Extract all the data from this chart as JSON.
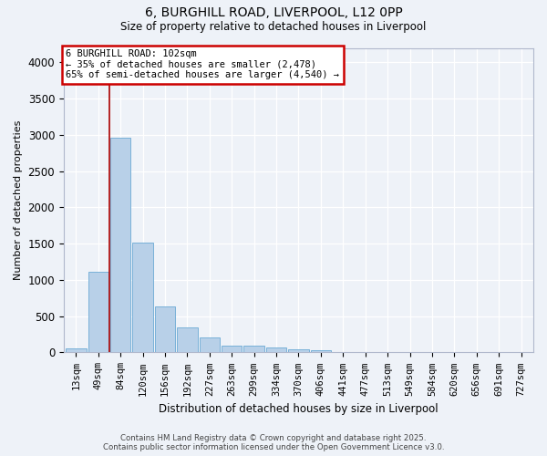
{
  "title_line1": "6, BURGHILL ROAD, LIVERPOOL, L12 0PP",
  "title_line2": "Size of property relative to detached houses in Liverpool",
  "xlabel": "Distribution of detached houses by size in Liverpool",
  "ylabel": "Number of detached properties",
  "bar_color": "#b8d0e8",
  "bar_edge_color": "#6aaad4",
  "background_color": "#eef2f8",
  "grid_color": "#ffffff",
  "categories": [
    "13sqm",
    "49sqm",
    "84sqm",
    "120sqm",
    "156sqm",
    "192sqm",
    "227sqm",
    "263sqm",
    "299sqm",
    "334sqm",
    "370sqm",
    "406sqm",
    "441sqm",
    "477sqm",
    "513sqm",
    "549sqm",
    "584sqm",
    "620sqm",
    "656sqm",
    "691sqm",
    "727sqm"
  ],
  "values": [
    55,
    1110,
    2960,
    1520,
    635,
    345,
    210,
    95,
    95,
    65,
    40,
    25,
    5,
    0,
    0,
    0,
    0,
    0,
    0,
    0,
    0
  ],
  "ylim": [
    0,
    4200
  ],
  "yticks": [
    0,
    500,
    1000,
    1500,
    2000,
    2500,
    3000,
    3500,
    4000
  ],
  "vline_position": 1.5,
  "vline_color": "#aa0000",
  "annotation_text_line1": "6 BURGHILL ROAD: 102sqm",
  "annotation_text_line2": "← 35% of detached houses are smaller (2,478)",
  "annotation_text_line3": "65% of semi-detached houses are larger (4,540) →",
  "annotation_box_color": "#ffffff",
  "annotation_border_color": "#cc0000",
  "footer_line1": "Contains HM Land Registry data © Crown copyright and database right 2025.",
  "footer_line2": "Contains public sector information licensed under the Open Government Licence v3.0."
}
